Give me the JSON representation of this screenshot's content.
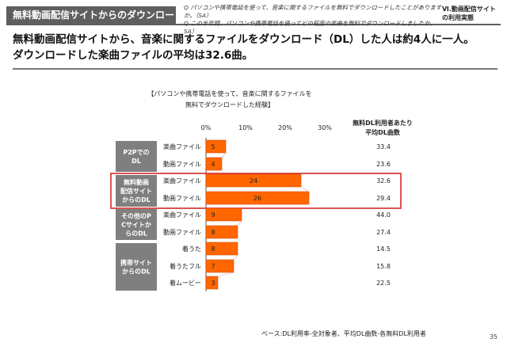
{
  "header": {
    "title": "無料動画配信サイトからのダウンロード",
    "section": "Ⅵ.動画配信サイトの利用実態"
  },
  "questions": [
    "Q パソコンや携帯電話を使って、音楽に関するファイルを無料でダウンロードしたことがありますか。（SA）",
    "Q この半年間、パソコンや携帯電話を使ってどの程度の楽曲を無料でダウンロードしましたか。SA）"
  ],
  "headline": {
    "line1": "無料動画配信サイトから、音楽に関するファイルをダウンロード（DL）した人は約4人に一人。",
    "line2": "ダウンロードした楽曲ファイルの平均は32.6曲。"
  },
  "right_header": {
    "line1": "無料DL利用者あたり",
    "line2": "平均DL曲数"
  },
  "base_note": "ベース:DL利用率-全対象者、平均DL曲数-各無料DL利用者",
  "page_number": "35",
  "colors": {
    "bar": "#ff6600",
    "bar_edge": "#d44a00",
    "group_box": "#7f7f7f",
    "highlight": "#d62a2a",
    "connector": "#e8a0a0"
  },
  "chart_data": {
    "type": "bar",
    "orientation": "horizontal",
    "title": "【パソコンや携帯電話を使って、音楽に関するファイルを無料でダウンロードした経験】",
    "title_lines": [
      "【パソコンや携帯電話を使って、音楽に関するファイルを",
      "無料でダウンロードした経験】"
    ],
    "xlim": [
      0,
      30
    ],
    "xticks": [
      "0%",
      "10%",
      "20%",
      "30%"
    ],
    "groups": [
      {
        "label": "P2PでのDL",
        "label_lines": [
          "P2Pでの",
          "DL"
        ],
        "highlight": false,
        "rows": [
          {
            "category": "楽曲ファイル",
            "value": 5,
            "avg": "33.4"
          },
          {
            "category": "動画ファイル",
            "value": 4,
            "avg": "23.6"
          }
        ]
      },
      {
        "label": "無料動画配信サイトからのDL",
        "label_lines": [
          "無料動画",
          "配信サイト",
          "からのDL"
        ],
        "highlight": true,
        "rows": [
          {
            "category": "楽曲ファイル",
            "value": 24,
            "avg": "32.6"
          },
          {
            "category": "動画ファイル",
            "value": 26,
            "avg": "29.4"
          }
        ]
      },
      {
        "label": "その他のPCサイトからのDL",
        "label_lines": [
          "その他のP",
          "Cサイトか",
          "らのDL"
        ],
        "highlight": false,
        "rows": [
          {
            "category": "楽曲ファイル",
            "value": 9,
            "avg": "44.0"
          },
          {
            "category": "動画ファイル",
            "value": 8,
            "avg": "27.4"
          }
        ]
      },
      {
        "label": "携帯サイトからのDL",
        "label_lines": [
          "携帯サイト",
          "からのDL"
        ],
        "highlight": false,
        "rows": [
          {
            "category": "着うた",
            "value": 8,
            "avg": "14.5"
          },
          {
            "category": "着うたフル",
            "value": 7,
            "avg": "15.8"
          },
          {
            "category": "着ムービー",
            "value": 3,
            "avg": "22.5"
          }
        ]
      }
    ]
  }
}
